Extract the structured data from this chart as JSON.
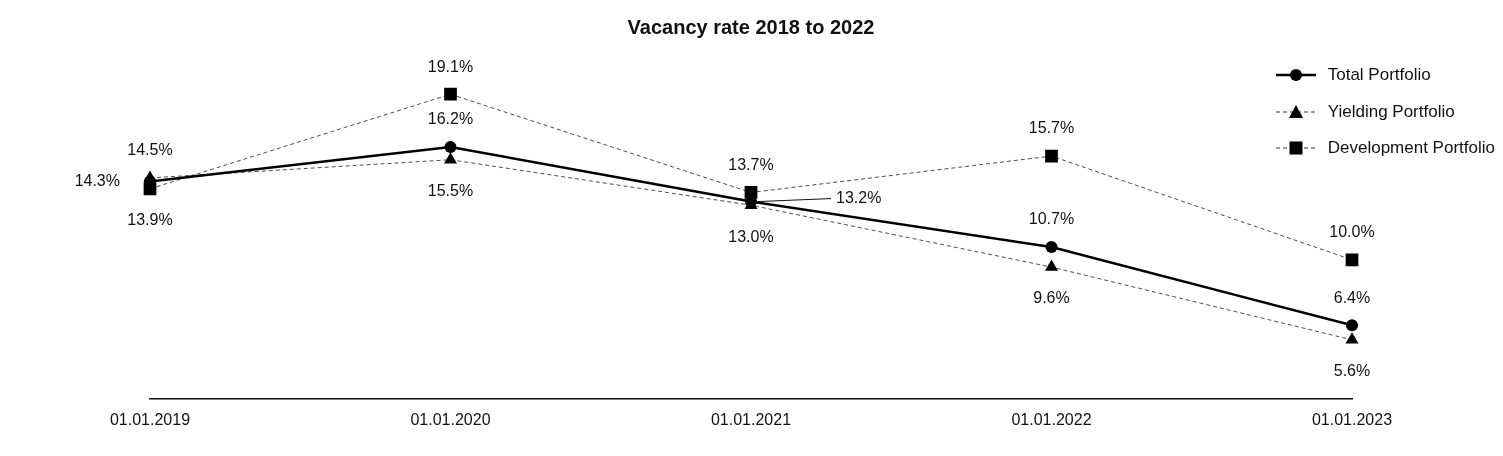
{
  "chart_data": {
    "type": "line",
    "title": "Vacancy rate 2018 to 2022",
    "categories": [
      "01.01.2019",
      "01.01.2020",
      "01.01.2021",
      "01.01.2022",
      "01.01.2023"
    ],
    "tick_labels": "x",
    "legend": "top right",
    "series": [
      {
        "name": "Total Portfolio",
        "color": "#000000",
        "marker": "circle",
        "line_style": "solid",
        "values": [
          14.3,
          16.2,
          13.2,
          10.7,
          6.4
        ],
        "value_labels": [
          "14.3%",
          "16.2%",
          "13.2%",
          "10.7%",
          "6.4%"
        ]
      },
      {
        "name": "Yielding Portfolio",
        "color": "#000000",
        "marker": "triangle",
        "line_style": "dashed",
        "values": [
          14.5,
          15.5,
          13.0,
          9.6,
          5.6
        ],
        "value_labels": [
          "14.5%",
          "15.5%",
          "13.0%",
          "9.6%",
          "5.6%"
        ]
      },
      {
        "name": "Development Portfolio",
        "color": "#000000",
        "marker": "square",
        "line_style": "dashed",
        "values": [
          13.9,
          19.1,
          13.7,
          15.7,
          10.0
        ],
        "value_labels": [
          "13.9%",
          "19.1%",
          "13.7%",
          "15.7%",
          "10.0%"
        ]
      }
    ]
  }
}
